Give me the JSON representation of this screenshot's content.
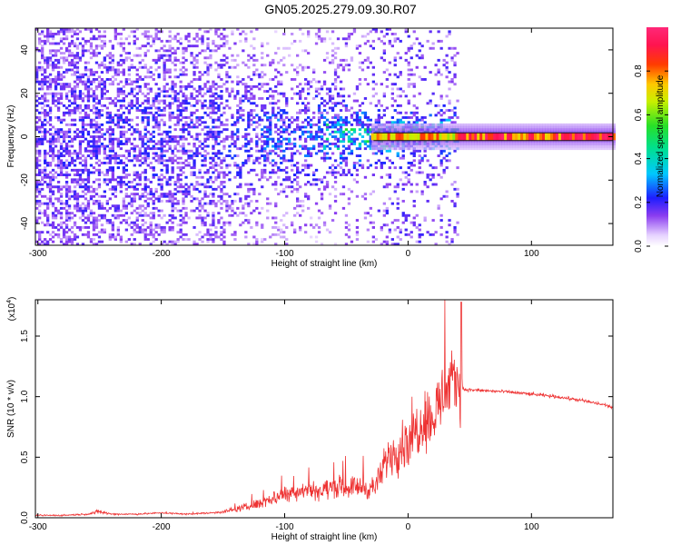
{
  "title": "GN05.2025.279.09.30.R07",
  "colors": {
    "signal": "#ee3333",
    "axis": "#000000",
    "ridge": "#000000"
  },
  "chart_data": [
    {
      "type": "heatmap",
      "title": "GN05.2025.279.09.30.R07",
      "xlabel": "Height of straight line (km)",
      "ylabel": "Frequency (Hz)",
      "xlim": [
        -302,
        166
      ],
      "ylim": [
        -50,
        50
      ],
      "xticks": [
        -300,
        -200,
        -100,
        0,
        100
      ],
      "xtick_labels": [
        "-300",
        "-200",
        "-100",
        "0",
        "100"
      ],
      "yticks": [
        -40,
        -20,
        0,
        20,
        40
      ],
      "ytick_labels": [
        "-40",
        "-20",
        "0",
        "20",
        "40"
      ],
      "colorbar": {
        "label": "Normalized spectral amplitude",
        "range": [
          0,
          1
        ],
        "ticks": [
          0.0,
          0.2,
          0.4,
          0.6,
          0.8
        ],
        "tick_labels": [
          "0.0",
          "0.2",
          "0.4",
          "0.6",
          "0.8"
        ]
      },
      "ridge_frequency_hz": 0
    },
    {
      "type": "line",
      "xlabel": "Height of straight line (km)",
      "ylabel": "SNR (10 * v/v)",
      "y_multiplier": "(x10",
      "y_multiplier_exp": "4",
      "y_multiplier_close": ")",
      "xlim": [
        -302,
        166
      ],
      "ylim": [
        0,
        1.8
      ],
      "xticks": [
        -300,
        -200,
        -100,
        0,
        100
      ],
      "xtick_labels": [
        "-300",
        "-200",
        "-100",
        "0",
        "100"
      ],
      "yticks": [
        0.0,
        0.5,
        1.0,
        1.5
      ],
      "ytick_labels": [
        "0.0",
        "0.5",
        "1.0",
        "1.5"
      ],
      "series": [
        {
          "name": "SNR",
          "x": [
            -302,
            -280,
            -260,
            -250,
            -240,
            -220,
            -200,
            -180,
            -160,
            -150,
            -140,
            -130,
            -120,
            -110,
            -100,
            -90,
            -80,
            -70,
            -60,
            -50,
            -40,
            -30,
            -25,
            -20,
            -15,
            -10,
            -5,
            0,
            5,
            10,
            15,
            20,
            25,
            30,
            35,
            40,
            43,
            45,
            60,
            80,
            100,
            120,
            140,
            150,
            160,
            166
          ],
          "y": [
            0.02,
            0.02,
            0.03,
            0.05,
            0.03,
            0.03,
            0.04,
            0.03,
            0.04,
            0.05,
            0.07,
            0.09,
            0.12,
            0.16,
            0.2,
            0.22,
            0.24,
            0.22,
            0.26,
            0.25,
            0.26,
            0.24,
            0.28,
            0.4,
            0.55,
            0.55,
            0.6,
            0.65,
            0.7,
            0.78,
            0.85,
            0.8,
            0.95,
            1.02,
            1.1,
            1.12,
            1.15,
            1.06,
            1.05,
            1.04,
            1.02,
            1.0,
            0.97,
            0.95,
            0.93,
            0.91
          ],
          "noise": [
            0.01,
            0.01,
            0.01,
            0.03,
            0.01,
            0.01,
            0.01,
            0.01,
            0.01,
            0.02,
            0.03,
            0.05,
            0.07,
            0.09,
            0.1,
            0.11,
            0.12,
            0.12,
            0.14,
            0.12,
            0.14,
            0.14,
            0.15,
            0.22,
            0.28,
            0.3,
            0.32,
            0.34,
            0.36,
            0.38,
            0.4,
            0.4,
            0.42,
            0.4,
            0.38,
            0.4,
            0.45,
            0.02,
            0.02,
            0.02,
            0.02,
            0.02,
            0.02,
            0.02,
            0.02,
            0.02
          ]
        }
      ]
    }
  ]
}
